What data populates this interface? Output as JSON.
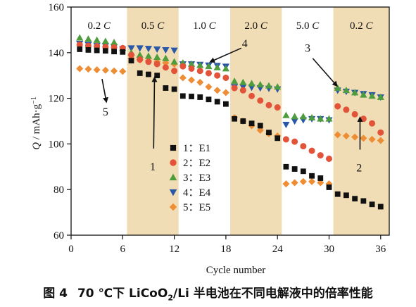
{
  "chart_data": {
    "type": "scatter",
    "xlabel": "Cycle number",
    "ylabel_html": "Q / mAh·g⁻¹",
    "xlim": [
      0,
      37
    ],
    "ylim": [
      60,
      160
    ],
    "xticks": [
      0,
      6,
      12,
      18,
      24,
      30,
      36
    ],
    "yticks": [
      60,
      80,
      100,
      120,
      140,
      160
    ],
    "rate_bands": [
      {
        "label": "0.2 C",
        "x0": 0,
        "x1": 6.5,
        "shaded": false
      },
      {
        "label": "0.5 C",
        "x0": 6.5,
        "x1": 12.5,
        "shaded": true
      },
      {
        "label": "1.0 C",
        "x0": 12.5,
        "x1": 18.5,
        "shaded": false
      },
      {
        "label": "2.0 C",
        "x0": 18.5,
        "x1": 24.5,
        "shaded": true
      },
      {
        "label": "5.0 C",
        "x0": 24.5,
        "x1": 30.5,
        "shaded": false
      },
      {
        "label": "0.2 C",
        "x0": 30.5,
        "x1": 37,
        "shaded": true
      }
    ],
    "series": [
      {
        "id": "1",
        "name": "1：E1",
        "marker": "square",
        "color": "#111111",
        "x": [
          1,
          2,
          3,
          4,
          5,
          6,
          7,
          8,
          9,
          10,
          11,
          12,
          13,
          14,
          15,
          16,
          17,
          18,
          19,
          20,
          21,
          22,
          23,
          24,
          25,
          26,
          27,
          28,
          29,
          30,
          31,
          32,
          33,
          34,
          35,
          36
        ],
        "y": [
          141.5,
          141.2,
          141,
          140.8,
          140.5,
          140.3,
          136.5,
          131,
          130.5,
          130,
          124.5,
          124,
          121,
          120.8,
          120.5,
          119.5,
          118.5,
          117.5,
          111,
          110,
          109,
          108,
          105,
          102.5,
          90,
          89,
          88,
          86,
          85,
          81,
          78,
          77.5,
          76,
          75,
          73.5,
          72.5
        ]
      },
      {
        "id": "2",
        "name": "2：E2",
        "marker": "circle",
        "color": "#e2533a",
        "x": [
          1,
          2,
          3,
          4,
          5,
          6,
          7,
          8,
          9,
          10,
          11,
          12,
          13,
          14,
          15,
          16,
          17,
          18,
          19,
          20,
          21,
          22,
          23,
          24,
          25,
          26,
          27,
          28,
          29,
          30,
          31,
          32,
          33,
          34,
          35,
          36
        ],
        "y": [
          143.5,
          143,
          142.8,
          142.5,
          142.3,
          142,
          139,
          137,
          136,
          135,
          133.5,
          132,
          134,
          133,
          132,
          131,
          130,
          129,
          124.5,
          123.5,
          121,
          119,
          117,
          116,
          102,
          101,
          99,
          97,
          95,
          93.5,
          116.5,
          115,
          113,
          111,
          109,
          105
        ]
      },
      {
        "id": "3",
        "name": "3：E3",
        "marker": "triangle-up",
        "color": "#4e9d3c",
        "x": [
          1,
          2,
          3,
          4,
          5,
          6,
          7,
          8,
          9,
          10,
          11,
          12,
          13,
          14,
          15,
          16,
          17,
          18,
          19,
          20,
          21,
          22,
          23,
          24,
          25,
          26,
          27,
          28,
          29,
          30,
          31,
          32,
          33,
          34,
          35,
          36
        ],
        "y": [
          146.5,
          146,
          145.5,
          145,
          144.5,
          142,
          140,
          139,
          138.5,
          138,
          137.5,
          136,
          135.5,
          135,
          134.5,
          134,
          133.5,
          133,
          127.5,
          127,
          126.5,
          126,
          125.5,
          125,
          112.5,
          112,
          112,
          111.5,
          111,
          111,
          124.5,
          123.5,
          122.5,
          121.5,
          121,
          120.5
        ]
      },
      {
        "id": "4",
        "name": "4：E4",
        "marker": "triangle-down",
        "color": "#2b57a8",
        "x": [
          1,
          2,
          3,
          4,
          5,
          6,
          7,
          8,
          9,
          10,
          11,
          12,
          13,
          14,
          15,
          16,
          17,
          18,
          19,
          20,
          21,
          22,
          23,
          24,
          25,
          26,
          27,
          28,
          29,
          30,
          31,
          32,
          33,
          34,
          35,
          36
        ],
        "y": [
          144,
          143.5,
          143,
          143,
          142.5,
          141.5,
          142,
          142,
          141.8,
          141.5,
          141.2,
          141,
          135,
          135,
          134.8,
          134.5,
          134.3,
          134,
          125,
          125,
          124.8,
          124.5,
          124.3,
          124,
          108.5,
          110,
          110.5,
          111,
          111,
          110.5,
          123.5,
          123,
          122.5,
          122,
          121.5,
          120.5
        ]
      },
      {
        "id": "5",
        "name": "5：E5",
        "marker": "diamond",
        "color": "#ee8d34",
        "x": [
          1,
          2,
          3,
          4,
          5,
          6,
          7,
          8,
          9,
          10,
          11,
          12,
          13,
          14,
          15,
          16,
          17,
          18,
          19,
          20,
          21,
          22,
          23,
          24,
          25,
          26,
          27,
          28,
          29,
          30,
          31,
          32,
          33,
          34,
          35,
          36
        ],
        "y": [
          133,
          132.8,
          132.5,
          132.3,
          132,
          131.8,
          137.5,
          136.8,
          136.5,
          136,
          135.5,
          135,
          129,
          128,
          127,
          125,
          123.5,
          122.5,
          111.5,
          110,
          108,
          106,
          104.5,
          103.5,
          82.5,
          83,
          83.5,
          83.5,
          83,
          82.5,
          104,
          103.5,
          103,
          102.5,
          102,
          101.5
        ]
      }
    ],
    "annotations": [
      {
        "label": "1",
        "text_x": 9.5,
        "text_y": 90,
        "arrow_from": [
          9.6,
          98
        ],
        "arrow_to": [
          9.7,
          129
        ]
      },
      {
        "label": "2",
        "text_x": 33.5,
        "text_y": 89.5,
        "arrow_from": [
          33.6,
          97.5
        ],
        "arrow_to": [
          33.6,
          111.5
        ]
      },
      {
        "label": "3",
        "text_x": 27.5,
        "text_y": 142,
        "arrow_from": [
          28.1,
          137.5
        ],
        "arrow_to": [
          30.9,
          125.5
        ]
      },
      {
        "label": "4",
        "text_x": 20.2,
        "text_y": 144,
        "arrow_from": [
          19.8,
          142
        ],
        "arrow_to": [
          16.2,
          136
        ]
      },
      {
        "label": "5",
        "text_x": 4,
        "text_y": 114,
        "arrow_from": [
          3.6,
          128.5
        ],
        "arrow_to": [
          4.1,
          118.5
        ]
      }
    ]
  },
  "caption": {
    "figure_number": "图 4",
    "text_before_sub": "70 ℃下 LiCoO",
    "sub": "2",
    "text_after_sub": "/Li 半电池在不同电解液中的倍率性能"
  }
}
